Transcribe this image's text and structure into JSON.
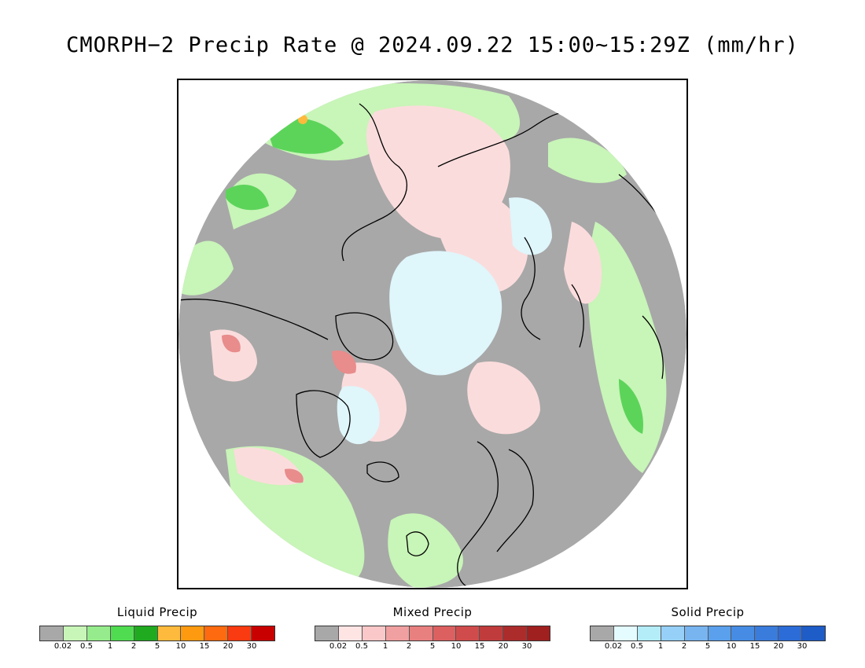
{
  "title": "CMORPH−2 Precip Rate @ 2024.09.22 15:00~15:29Z (mm/hr)",
  "colors": {
    "no_precip": "#a8a8a8",
    "liquid_light": "#c8f5b8",
    "liquid_mid": "#7fe07a",
    "liquid_heavy": "#2db82d",
    "mixed_light": "#fbdcdc",
    "mixed_mid": "#e88c8c",
    "solid_light": "#dff6fb",
    "coast": "#000000"
  },
  "legends": [
    {
      "title": "Liquid Precip",
      "ticks": [
        "0.02",
        "0.5",
        "1",
        "2",
        "5",
        "10",
        "15",
        "20",
        "30"
      ],
      "colors": [
        "#a8a8a8",
        "#c8f5b8",
        "#96ec8c",
        "#50dc50",
        "#20aa20",
        "#fdba3c",
        "#fd9a10",
        "#fd6a10",
        "#fa3a10",
        "#c80000"
      ]
    },
    {
      "title": "Mixed Precip",
      "ticks": [
        "0.02",
        "0.5",
        "1",
        "2",
        "5",
        "10",
        "15",
        "20",
        "30"
      ],
      "colors": [
        "#a8a8a8",
        "#ffe4e4",
        "#fac8c8",
        "#f0a0a0",
        "#e88080",
        "#dc6060",
        "#d04c4c",
        "#c03c3c",
        "#ac2c2c",
        "#a02020"
      ]
    },
    {
      "title": "Solid Precip",
      "ticks": [
        "0.02",
        "0.5",
        "1",
        "2",
        "5",
        "10",
        "15",
        "20",
        "30"
      ],
      "colors": [
        "#a8a8a8",
        "#e4fcff",
        "#b4ecf8",
        "#96d0f8",
        "#78b4f0",
        "#5aa0ec",
        "#468ce4",
        "#3a7cdc",
        "#2c6cd8",
        "#1e5cc8"
      ]
    }
  ]
}
